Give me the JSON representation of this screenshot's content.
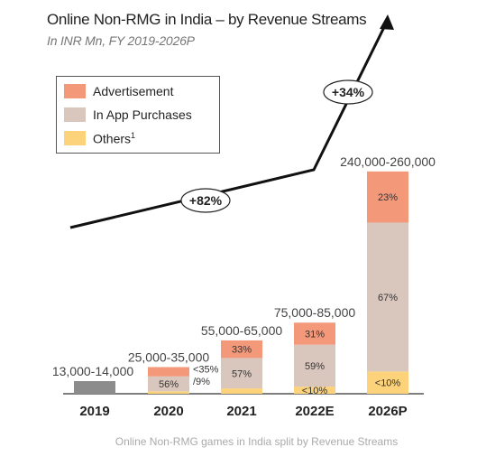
{
  "title": "Online Non-RMG in India – by Revenue Streams",
  "subtitle": "In INR Mn, FY 2019-2026P",
  "footer": "Online Non-RMG games in India split by Revenue Streams",
  "legend": [
    {
      "name": "Advertisement",
      "color": "#f4987a"
    },
    {
      "name": "In App Purchases",
      "color": "#d9c7be"
    },
    {
      "name": "Others",
      "sup": "1",
      "color": "#fcd27a"
    }
  ],
  "growth_labels": [
    {
      "text": "+82%",
      "between": [
        "2019",
        "2022E"
      ]
    },
    {
      "text": "+34%",
      "between": [
        "2022E",
        "2026P"
      ]
    }
  ],
  "chart_data": {
    "type": "bar",
    "stacked": true,
    "categories": [
      "2019",
      "2020",
      "2021",
      "2022E",
      "2026P"
    ],
    "totals": [
      "13,000-14,000",
      "25,000-35,000",
      "55,000-65,000",
      "75,000-85,000",
      "240,000-260,000"
    ],
    "total_midpoints": [
      13500,
      30000,
      60000,
      80000,
      250000
    ],
    "series": [
      {
        "name": "Others",
        "color": "#fcd27a",
        "values": [
          null,
          9,
          10,
          10,
          10
        ],
        "labels": [
          "",
          "9%",
          "",
          "<10%",
          "<10%"
        ]
      },
      {
        "name": "In App Purchases",
        "color": "#d9c7be",
        "values": [
          null,
          56,
          57,
          59,
          67
        ],
        "labels": [
          "",
          "56%",
          "57%",
          "59%",
          "67%"
        ]
      },
      {
        "name": "Advertisement",
        "color": "#f4987a",
        "values": [
          null,
          35,
          33,
          31,
          23
        ],
        "labels": [
          "",
          "35%",
          "33%",
          "31%",
          "23%"
        ]
      }
    ],
    "unsplit": {
      "category": "2019",
      "color": "#8c8c8c"
    },
    "ylim": [
      0,
      260000
    ]
  }
}
